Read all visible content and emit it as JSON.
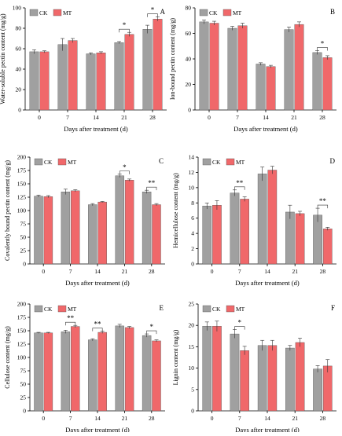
{
  "colors": {
    "ck": "#a0a0a0",
    "mt": "#f0686a",
    "axis": "#000000"
  },
  "chart_data": [
    {
      "type": "bar",
      "panel_letter": "A",
      "categories": [
        "0",
        "7",
        "14",
        "21",
        "28"
      ],
      "series": [
        {
          "name": "CK",
          "values": [
            57,
            64,
            55,
            66,
            79
          ],
          "errors": [
            2,
            6,
            1,
            1,
            4
          ]
        },
        {
          "name": "MT",
          "values": [
            57,
            68,
            56,
            74,
            89
          ],
          "errors": [
            1,
            2,
            1,
            2,
            2
          ]
        }
      ],
      "ylim": [
        0,
        100
      ],
      "yticks": [
        0,
        20,
        40,
        60,
        80,
        100
      ],
      "ylabel": "Water-soluble pectin content (mg/g)",
      "xlabel": "Days after treatment (d)",
      "significance": [
        {
          "category": "21",
          "mark": "*"
        },
        {
          "category": "28",
          "mark": "*"
        }
      ],
      "legend": "top-left"
    },
    {
      "type": "bar",
      "panel_letter": "B",
      "categories": [
        "0",
        "7",
        "14",
        "21",
        "28"
      ],
      "series": [
        {
          "name": "CK",
          "values": [
            69,
            64,
            36,
            63,
            45
          ],
          "errors": [
            1.5,
            1.5,
            1,
            2,
            1.5
          ]
        },
        {
          "name": "MT",
          "values": [
            68,
            66,
            34,
            67,
            41
          ],
          "errors": [
            1.5,
            2,
            1,
            2,
            1.5
          ]
        }
      ],
      "ylim": [
        0,
        80
      ],
      "yticks": [
        0,
        20,
        40,
        60,
        80
      ],
      "ylabel": "Ion-bound pectin content (mg/g)",
      "xlabel": "Days after treatment (d)",
      "significance": [
        {
          "category": "28",
          "mark": "*"
        }
      ],
      "legend": "top-left"
    },
    {
      "type": "bar",
      "panel_letter": "C",
      "categories": [
        "0",
        "7",
        "14",
        "21",
        "28"
      ],
      "series": [
        {
          "name": "CK",
          "values": [
            127,
            135,
            111,
            165,
            135
          ],
          "errors": [
            2,
            5,
            2,
            3,
            3
          ]
        },
        {
          "name": "MT",
          "values": [
            126,
            137,
            116,
            157,
            111
          ],
          "errors": [
            2,
            2,
            1,
            2,
            2
          ]
        }
      ],
      "ylim": [
        0,
        200
      ],
      "yticks": [
        0,
        25,
        50,
        75,
        100,
        125,
        150,
        175,
        200
      ],
      "ylabel": "Covalently bound pectin content (mg/g)",
      "xlabel": "Days after treatment (d)",
      "significance": [
        {
          "category": "21",
          "mark": "*"
        },
        {
          "category": "28",
          "mark": "**"
        }
      ],
      "legend": "top-left"
    },
    {
      "type": "bar",
      "panel_letter": "D",
      "categories": [
        "0",
        "7",
        "14",
        "21",
        "28"
      ],
      "series": [
        {
          "name": "CK",
          "values": [
            7.6,
            9.3,
            11.8,
            6.8,
            6.4
          ],
          "errors": [
            0.4,
            0.4,
            0.9,
            0.9,
            0.9
          ]
        },
        {
          "name": "MT",
          "values": [
            7.7,
            8.5,
            12.3,
            6.6,
            4.6
          ],
          "errors": [
            0.6,
            0.3,
            0.5,
            0.3,
            0.2
          ]
        }
      ],
      "ylim": [
        0,
        14
      ],
      "yticks": [
        0,
        2,
        4,
        6,
        8,
        10,
        12,
        14
      ],
      "ylabel": "Hemicellulose content (mg/g)",
      "xlabel": "Days after treatment (d)",
      "significance": [
        {
          "category": "7",
          "mark": "**"
        },
        {
          "category": "28",
          "mark": "**"
        }
      ],
      "legend": "top-left"
    },
    {
      "type": "bar",
      "panel_letter": "E",
      "categories": [
        "0",
        "7",
        "14",
        "21",
        "28"
      ],
      "series": [
        {
          "name": "CK",
          "values": [
            146,
            148,
            133,
            159,
            141
          ],
          "errors": [
            1,
            3,
            2,
            3,
            3
          ]
        },
        {
          "name": "MT",
          "values": [
            146,
            158,
            147,
            156,
            131
          ],
          "errors": [
            1,
            2,
            2,
            2,
            2
          ]
        }
      ],
      "ylim": [
        0,
        200
      ],
      "yticks": [
        0,
        25,
        50,
        75,
        100,
        125,
        150,
        175,
        200
      ],
      "ylabel": "Cellulose content (mg/g)",
      "xlabel": "Days after treatment (d)",
      "significance": [
        {
          "category": "7",
          "mark": "**"
        },
        {
          "category": "14",
          "mark": "**"
        },
        {
          "category": "28",
          "mark": "*"
        }
      ],
      "legend": "top-left"
    },
    {
      "type": "bar",
      "panel_letter": "F",
      "categories": [
        "0",
        "7",
        "14",
        "21",
        "28"
      ],
      "series": [
        {
          "name": "CK",
          "values": [
            19.8,
            18,
            15.3,
            14.7,
            9.8
          ],
          "errors": [
            1,
            1,
            1.2,
            0.6,
            0.8
          ]
        },
        {
          "name": "MT",
          "values": [
            19.8,
            14.1,
            15.3,
            16,
            10.5
          ],
          "errors": [
            1.2,
            1,
            1.2,
            1,
            1.5
          ]
        }
      ],
      "ylim": [
        0,
        25
      ],
      "yticks": [
        0,
        5,
        10,
        15,
        20,
        25
      ],
      "ylabel": "Lignin content (mg/g)",
      "xlabel": "Days after treatment (d)",
      "significance": [
        {
          "category": "7",
          "mark": "*"
        }
      ],
      "legend": "top-left"
    }
  ]
}
